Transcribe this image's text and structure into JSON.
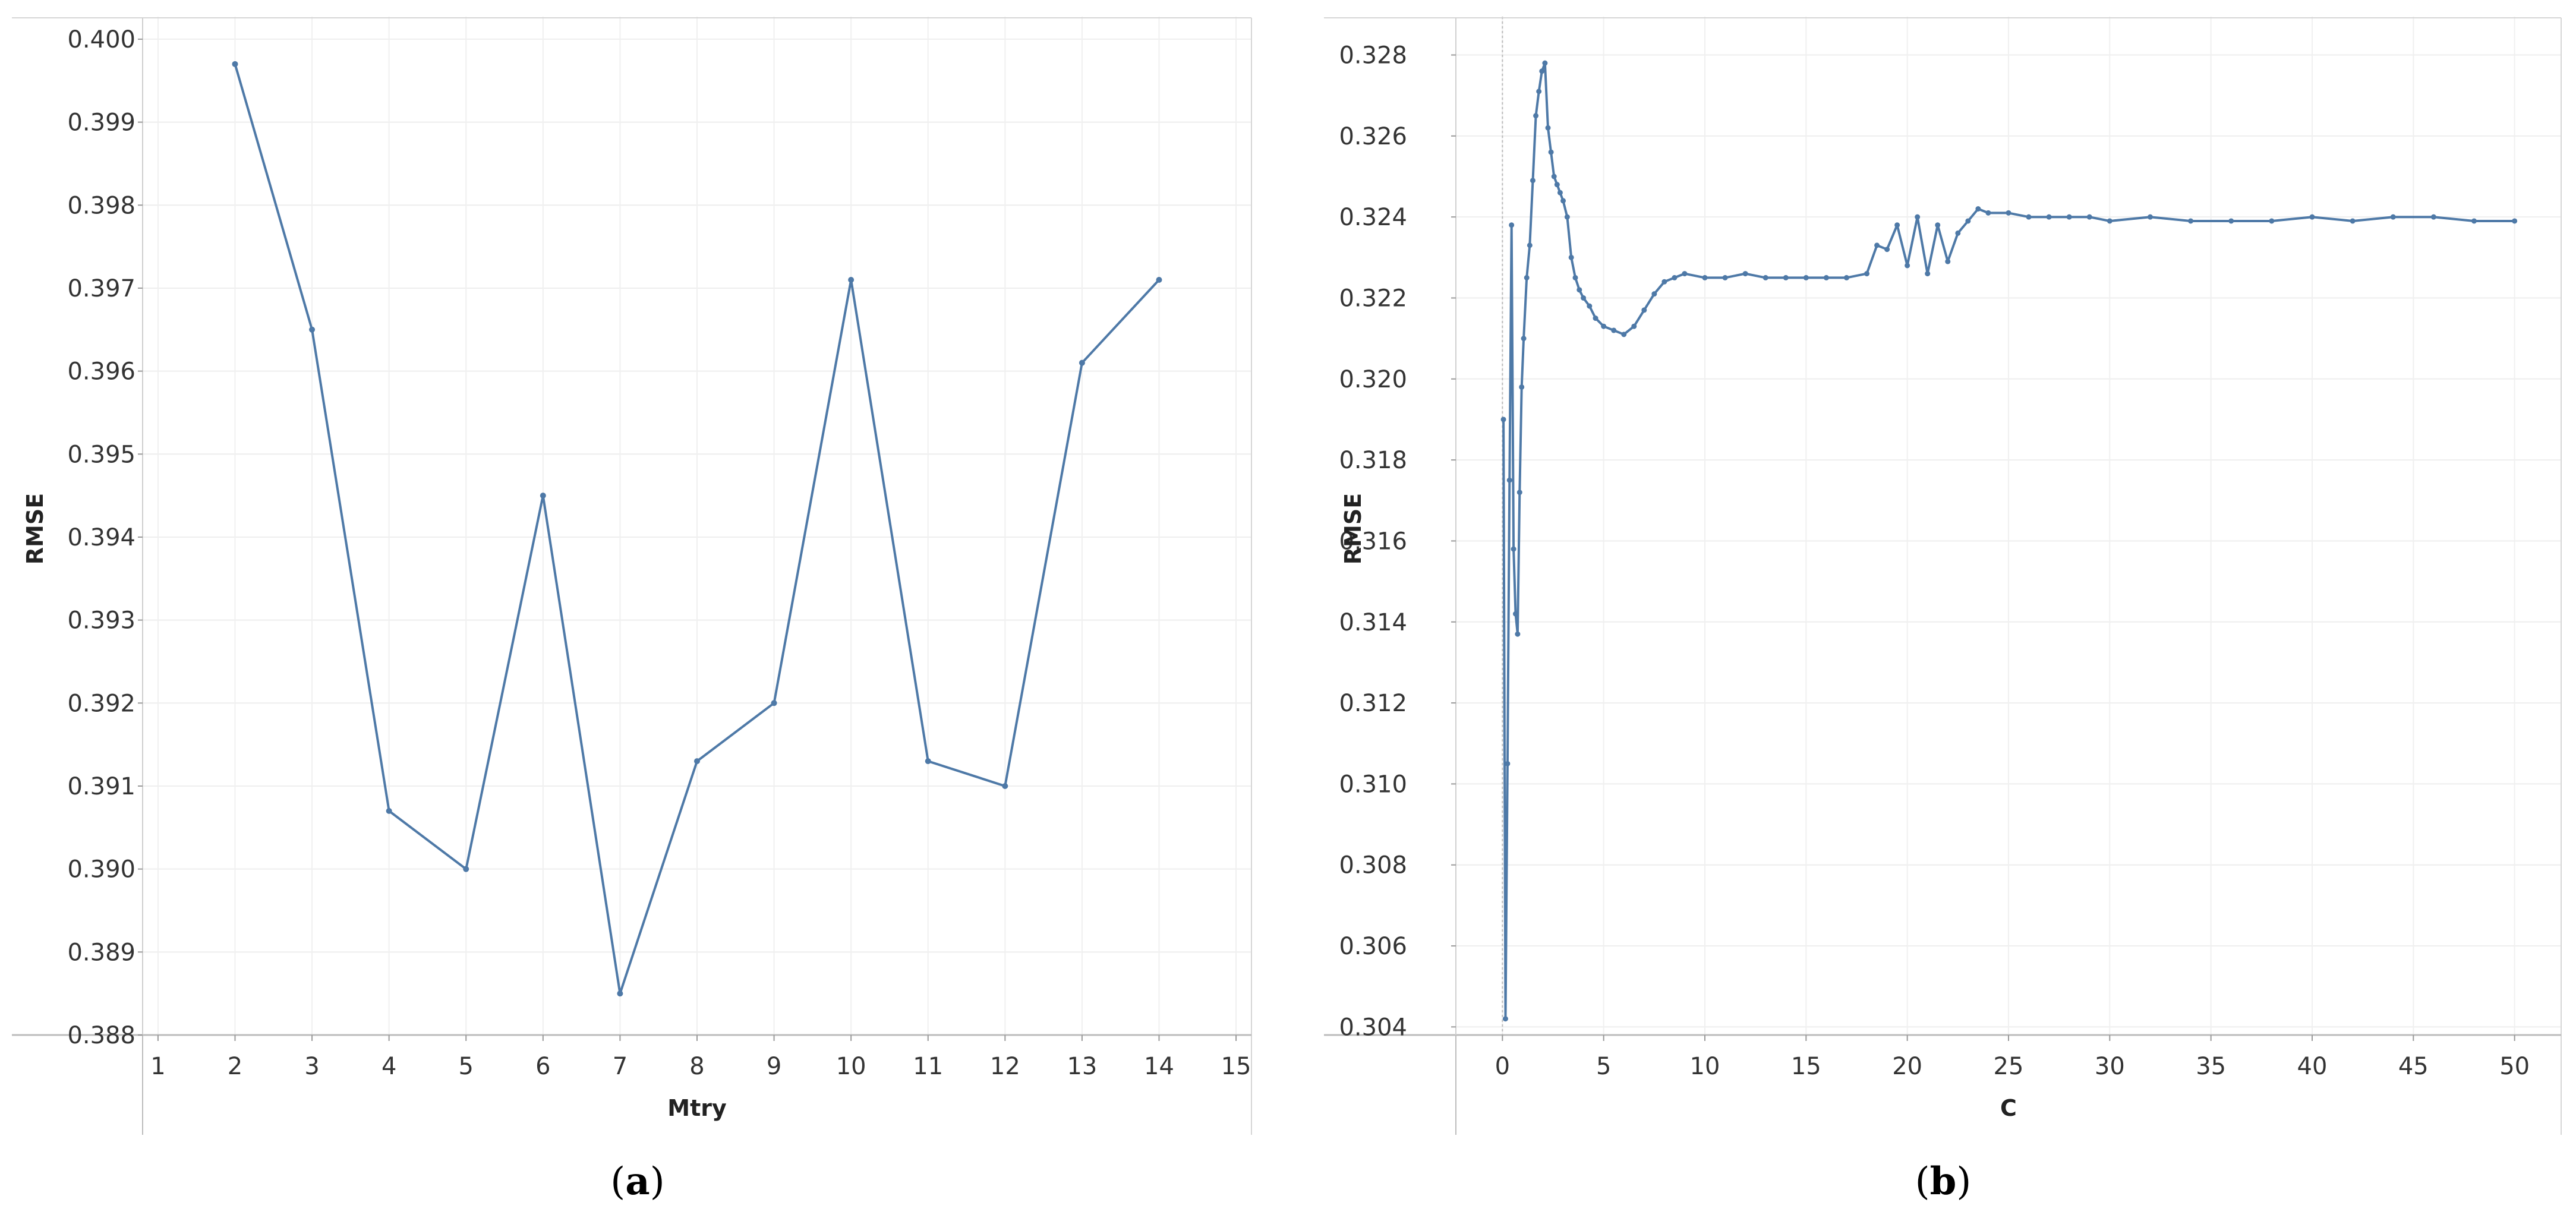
{
  "chart_data": [
    {
      "type": "line",
      "caption_letter": "a",
      "xlabel": "Mtry",
      "ylabel": "RMSE",
      "xlim": [
        0.8,
        15.2
      ],
      "ylim": [
        0.388,
        0.4002
      ],
      "xticks": [
        1,
        2,
        3,
        4,
        5,
        6,
        7,
        8,
        9,
        10,
        11,
        12,
        13,
        14,
        15
      ],
      "yticks": [
        0.388,
        0.389,
        0.39,
        0.391,
        0.392,
        0.393,
        0.394,
        0.395,
        0.396,
        0.397,
        0.398,
        0.399,
        0.4
      ],
      "yticks_label": [
        "0.388",
        "0.389",
        "0.390",
        "0.391",
        "0.392",
        "0.393",
        "0.394",
        "0.395",
        "0.396",
        "0.397",
        "0.398",
        "0.399",
        "0.400"
      ],
      "grid": true,
      "color": "#4e79a7",
      "series": [
        {
          "x": [
            2,
            3,
            4,
            5,
            6,
            7,
            8,
            9,
            10,
            11,
            12,
            13,
            14
          ],
          "y": [
            0.3997,
            0.3965,
            0.3907,
            0.39,
            0.3945,
            0.3885,
            0.3913,
            0.392,
            0.3971,
            0.3913,
            0.391,
            0.3961,
            0.3971
          ]
        }
      ]
    },
    {
      "type": "line",
      "caption_letter": "b",
      "xlabel": "C",
      "ylabel": "RMSE",
      "xlim": [
        -2.3,
        52.3
      ],
      "ylim": [
        0.3038,
        0.3288
      ],
      "xticks": [
        0,
        5,
        10,
        15,
        20,
        25,
        30,
        35,
        40,
        45,
        50
      ],
      "yticks": [
        0.304,
        0.306,
        0.308,
        0.31,
        0.312,
        0.314,
        0.316,
        0.318,
        0.32,
        0.322,
        0.324,
        0.326,
        0.328
      ],
      "yticks_label": [
        "0.304",
        "0.306",
        "0.308",
        "0.310",
        "0.312",
        "0.314",
        "0.316",
        "0.318",
        "0.320",
        "0.322",
        "0.324",
        "0.326",
        "0.328"
      ],
      "grid": true,
      "color": "#4e79a7",
      "series": [
        {
          "x": [
            0.05,
            0.15,
            0.25,
            0.35,
            0.45,
            0.55,
            0.65,
            0.75,
            0.85,
            0.95,
            1.05,
            1.2,
            1.35,
            1.5,
            1.65,
            1.8,
            1.95,
            2.1,
            2.25,
            2.4,
            2.55,
            2.7,
            2.85,
            3.0,
            3.2,
            3.4,
            3.6,
            3.8,
            4.0,
            4.3,
            4.6,
            5.0,
            5.5,
            6.0,
            6.5,
            7.0,
            7.5,
            8.0,
            8.5,
            9.0,
            10.0,
            11.0,
            12.0,
            13.0,
            14.0,
            15.0,
            16.0,
            17.0,
            18.0,
            18.5,
            19.0,
            19.5,
            20.0,
            20.5,
            21.0,
            21.5,
            22.0,
            22.5,
            23.0,
            23.5,
            24.0,
            25.0,
            26.0,
            27.0,
            28.0,
            29.0,
            30.0,
            32.0,
            34.0,
            36.0,
            38.0,
            40.0,
            42.0,
            44.0,
            46.0,
            48.0,
            50.0
          ],
          "y": [
            0.319,
            0.3042,
            0.3105,
            0.3175,
            0.3238,
            0.3158,
            0.3142,
            0.3137,
            0.3172,
            0.3198,
            0.321,
            0.3225,
            0.3233,
            0.3249,
            0.3265,
            0.3271,
            0.3276,
            0.3278,
            0.3262,
            0.3256,
            0.325,
            0.3248,
            0.3246,
            0.3244,
            0.324,
            0.323,
            0.3225,
            0.3222,
            0.322,
            0.3218,
            0.3215,
            0.3213,
            0.3212,
            0.3211,
            0.3213,
            0.3217,
            0.3221,
            0.3224,
            0.3225,
            0.3226,
            0.3225,
            0.3225,
            0.3226,
            0.3225,
            0.3225,
            0.3225,
            0.3225,
            0.3225,
            0.3226,
            0.3233,
            0.3232,
            0.3238,
            0.3228,
            0.324,
            0.3226,
            0.3238,
            0.3229,
            0.3236,
            0.3239,
            0.3242,
            0.3241,
            0.3241,
            0.324,
            0.324,
            0.324,
            0.324,
            0.3239,
            0.324,
            0.3239,
            0.3239,
            0.3239,
            0.324,
            0.3239,
            0.324,
            0.324,
            0.3239,
            0.3239
          ]
        }
      ]
    }
  ]
}
